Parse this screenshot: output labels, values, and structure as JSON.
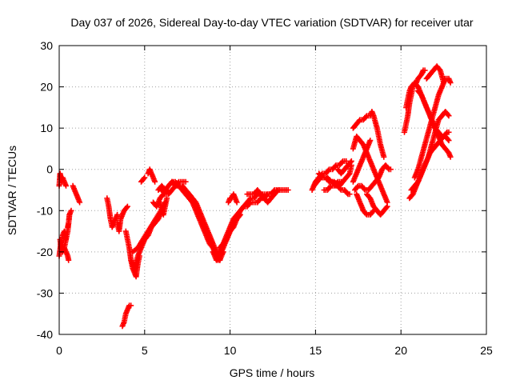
{
  "chart_data": {
    "type": "scatter",
    "title": "Day 037 of 2026, Sidereal Day-to-day VTEC variation (SDTVAR) for receiver utar",
    "xlabel": "GPS time / hours",
    "ylabel": "SDTVAR / TECUs",
    "xlim": [
      0,
      25
    ],
    "ylim": [
      -40,
      30
    ],
    "xticks": [
      "0",
      "5",
      "10",
      "15",
      "20",
      "25"
    ],
    "yticks": [
      "-40",
      "-30",
      "-20",
      "-10",
      "0",
      "10",
      "20",
      "30"
    ],
    "grid": true,
    "legend": "none",
    "marker": "plus",
    "color": "#ff0000",
    "segments": [
      {
        "x": [
          0.0,
          0.1,
          0.2,
          0.3,
          0.35,
          0.4
        ],
        "y": [
          -21,
          -18,
          -16,
          -15,
          -16,
          -17
        ]
      },
      {
        "x": [
          0.05,
          0.1,
          0.2,
          0.3,
          0.4,
          0.5,
          0.55
        ],
        "y": [
          -17,
          -19,
          -20,
          -19,
          -20,
          -21,
          -22
        ]
      },
      {
        "x": [
          0.0,
          0.05,
          0.1,
          0.15,
          0.2,
          0.3,
          0.4
        ],
        "y": [
          -4,
          -1,
          -2,
          -3,
          -2,
          -3,
          -4
        ]
      },
      {
        "x": [
          0.3,
          0.4,
          0.5,
          0.55,
          0.6
        ],
        "y": [
          -19,
          -17,
          -15,
          -13,
          -11
        ]
      },
      {
        "x": [
          0.5,
          0.55,
          0.6,
          0.7
        ],
        "y": [
          -14,
          -13,
          -11,
          -10
        ]
      },
      {
        "x": [
          0.8,
          0.9,
          1.0,
          1.1,
          1.2
        ],
        "y": [
          -4,
          -5,
          -6,
          -7,
          -8
        ]
      },
      {
        "x": [
          2.8,
          2.9,
          3.0,
          3.1,
          3.2,
          3.3,
          3.4
        ],
        "y": [
          -7,
          -9,
          -12,
          -14,
          -13,
          -12,
          -11
        ]
      },
      {
        "x": [
          3.4,
          3.5,
          3.6,
          3.7,
          3.8,
          4.0
        ],
        "y": [
          -13,
          -15,
          -12,
          -11,
          -10,
          -9
        ]
      },
      {
        "x": [
          3.7,
          3.8,
          3.9,
          4.0,
          4.1,
          4.2
        ],
        "y": [
          -38,
          -37,
          -35,
          -34,
          -33,
          -33
        ]
      },
      {
        "x": [
          3.9,
          4.0,
          4.1,
          4.2,
          4.3,
          4.4,
          4.5,
          4.6,
          4.7
        ],
        "y": [
          -15,
          -17,
          -19,
          -22,
          -24,
          -25,
          -26,
          -23,
          -21
        ]
      },
      {
        "x": [
          4.2,
          4.4,
          4.6,
          4.8,
          5.0,
          5.2,
          5.4,
          5.6,
          5.8,
          6.0,
          6.2
        ],
        "y": [
          -22,
          -24,
          -21,
          -19,
          -17,
          -16,
          -14,
          -13,
          -12,
          -10,
          -8
        ]
      },
      {
        "x": [
          4.3,
          4.6,
          4.9,
          5.2,
          5.5,
          5.8,
          6.1
        ],
        "y": [
          -20,
          -19,
          -17,
          -15,
          -13,
          -11,
          -9
        ]
      },
      {
        "x": [
          4.8,
          5.0
        ],
        "y": [
          -3,
          -2
        ]
      },
      {
        "x": [
          5.2,
          5.3,
          5.4,
          5.5,
          5.6
        ],
        "y": [
          -1,
          0,
          -1,
          -2,
          -3
        ]
      },
      {
        "x": [
          5.5,
          5.7,
          5.9,
          6.1,
          6.3
        ],
        "y": [
          -8,
          -9,
          -7,
          -6,
          -5
        ]
      },
      {
        "x": [
          5.8,
          6.0,
          6.2,
          6.4,
          6.6,
          6.8,
          7.0,
          7.2,
          7.4
        ],
        "y": [
          -5,
          -4,
          -5,
          -4,
          -3,
          -4,
          -3,
          -3,
          -3
        ]
      },
      {
        "x": [
          5.9,
          6.0,
          6.1,
          6.2,
          6.3
        ],
        "y": [
          -8,
          -10,
          -11,
          -9,
          -7
        ]
      },
      {
        "x": [
          6.0,
          6.2,
          6.4,
          6.6,
          6.8,
          7.0,
          7.2,
          7.4,
          7.6,
          7.8,
          8.0,
          8.2,
          8.4,
          8.6,
          8.8,
          9.0,
          9.2,
          9.3
        ],
        "y": [
          -5,
          -6,
          -6,
          -5,
          -4,
          -4,
          -4,
          -5,
          -6,
          -7,
          -9,
          -11,
          -13,
          -15,
          -17,
          -19,
          -21,
          -22
        ]
      },
      {
        "x": [
          6.6,
          6.8,
          7.0,
          7.2,
          7.4,
          7.6,
          7.8,
          8.0,
          8.2,
          8.4,
          8.6,
          8.8,
          9.0,
          9.2,
          9.4
        ],
        "y": [
          -3,
          -3,
          -4,
          -4,
          -5,
          -6,
          -7,
          -8,
          -10,
          -12,
          -14,
          -16,
          -18,
          -20,
          -22
        ]
      },
      {
        "x": [
          7.0,
          7.2,
          7.4,
          7.6,
          7.8,
          8.0,
          8.2,
          8.4,
          8.6,
          8.8,
          9.0,
          9.2,
          9.4,
          9.6
        ],
        "y": [
          -4,
          -5,
          -6,
          -7,
          -8,
          -10,
          -12,
          -14,
          -16,
          -18,
          -19,
          -21,
          -22,
          -20
        ]
      },
      {
        "x": [
          9.0,
          9.2,
          9.4,
          9.6,
          9.8,
          10.0,
          10.2,
          10.4,
          10.6
        ],
        "y": [
          -20,
          -22,
          -21,
          -19,
          -17,
          -15,
          -14,
          -12,
          -11
        ]
      },
      {
        "x": [
          9.2,
          9.4,
          9.6,
          9.8,
          10.0,
          10.2,
          10.4,
          10.6,
          10.8,
          11.0,
          11.2,
          11.4,
          11.6,
          11.8,
          12.0,
          12.2,
          12.4,
          12.6,
          12.8,
          13.0
        ],
        "y": [
          -21,
          -20,
          -18,
          -16,
          -14,
          -12,
          -11,
          -10,
          -9,
          -9,
          -8,
          -8,
          -8,
          -7,
          -7,
          -6,
          -6,
          -6,
          -5,
          -5
        ]
      },
      {
        "x": [
          9.4,
          9.6,
          9.8,
          10.0,
          10.2,
          10.4,
          10.6,
          10.8,
          11.0,
          11.2,
          11.4,
          11.6,
          11.8,
          12.0,
          12.2,
          12.4,
          12.6,
          12.8,
          13.0,
          13.2,
          13.4
        ],
        "y": [
          -19,
          -18,
          -17,
          -15,
          -13,
          -12,
          -10,
          -9,
          -8,
          -7,
          -7,
          -6,
          -6,
          -6,
          -6,
          -6,
          -5,
          -5,
          -5,
          -5,
          -5
        ]
      },
      {
        "x": [
          9.9,
          10.0,
          10.1,
          10.2,
          10.3,
          10.4
        ],
        "y": [
          -8,
          -7,
          -7,
          -6,
          -7,
          -8
        ]
      },
      {
        "x": [
          11.0,
          11.2,
          11.4,
          11.6,
          11.8,
          12.0,
          12.2,
          12.4,
          12.6,
          12.8
        ],
        "y": [
          -6,
          -6,
          -6,
          -5,
          -6,
          -7,
          -8,
          -7,
          -6,
          -5
        ]
      },
      {
        "x": [
          14.8,
          15.0,
          15.2,
          15.4,
          15.6,
          15.8,
          16.0,
          16.2,
          16.4,
          16.6,
          16.8
        ],
        "y": [
          -5,
          -3,
          -2,
          -1,
          -1,
          0,
          0,
          1,
          1,
          2,
          2
        ]
      },
      {
        "x": [
          14.9,
          15.1,
          15.3,
          15.5,
          15.7,
          15.9,
          16.1,
          16.3,
          16.5,
          16.7,
          16.9,
          17.0
        ],
        "y": [
          -4,
          -3,
          -2,
          -2,
          -2,
          -3,
          -3,
          -4,
          -5,
          -5,
          -6,
          -6
        ]
      },
      {
        "x": [
          15.2,
          15.4,
          15.6,
          15.8,
          16.0,
          16.2,
          16.4,
          16.6,
          16.8,
          17.0,
          17.1
        ],
        "y": [
          -1,
          -2,
          -2,
          -3,
          -3,
          -4,
          -4,
          -3,
          -2,
          -1,
          1
        ]
      },
      {
        "x": [
          15.5,
          15.7,
          15.9,
          16.1,
          16.3,
          16.5
        ],
        "y": [
          -5,
          -5,
          -4,
          -4,
          -3,
          -3
        ]
      },
      {
        "x": [
          16.3,
          16.5,
          16.7,
          16.9,
          17.1
        ],
        "y": [
          0,
          -1,
          0,
          1,
          2
        ]
      },
      {
        "x": [
          17.2,
          17.4,
          17.6,
          17.8,
          18.0,
          18.2,
          18.3,
          18.4,
          18.6,
          18.8,
          19.0
        ],
        "y": [
          10,
          11,
          12,
          12,
          13,
          13,
          14,
          13,
          10,
          6,
          3
        ]
      },
      {
        "x": [
          17.2,
          17.4,
          17.6,
          17.8,
          18.0,
          18.2,
          18.4,
          18.6,
          18.8,
          19.0,
          19.2
        ],
        "y": [
          5,
          8,
          7,
          6,
          4,
          2,
          0,
          -2,
          -4,
          -6,
          -8
        ]
      },
      {
        "x": [
          17.2,
          17.4,
          17.6,
          17.8,
          18.0,
          18.2
        ],
        "y": [
          -3,
          -1,
          1,
          3,
          5,
          7
        ]
      },
      {
        "x": [
          17.3,
          17.5,
          17.7,
          17.9,
          18.1,
          18.3,
          18.5,
          18.7,
          18.9,
          19.1,
          19.3,
          19.4
        ],
        "y": [
          -5,
          -4,
          -4,
          -5,
          -5,
          -4,
          -3,
          -2,
          0,
          1,
          0,
          0
        ]
      },
      {
        "x": [
          17.4,
          17.5,
          17.6,
          17.8,
          18.0,
          18.2,
          18.4
        ],
        "y": [
          -6,
          -7,
          -8,
          -10,
          -11,
          -11,
          -10
        ]
      },
      {
        "x": [
          18.0,
          18.2,
          18.4,
          18.6,
          18.8,
          19.0,
          19.2
        ],
        "y": [
          -6,
          -7,
          -9,
          -10,
          -11,
          -10,
          -9
        ]
      },
      {
        "x": [
          20.2,
          20.3,
          20.4,
          20.5,
          20.6,
          20.7,
          20.8,
          20.9,
          21.0,
          21.2,
          21.3,
          21.4
        ],
        "y": [
          9,
          11,
          13,
          16,
          18,
          20,
          21,
          21,
          22,
          23,
          24,
          24
        ]
      },
      {
        "x": [
          20.3,
          20.4,
          20.5,
          20.6,
          20.8,
          21.0,
          21.2,
          21.4,
          21.6,
          21.8,
          22.0,
          22.2,
          22.4,
          22.6,
          22.8,
          22.9
        ],
        "y": [
          15,
          17,
          19,
          20,
          21,
          20,
          18,
          16,
          14,
          12,
          10,
          8,
          6,
          5,
          4,
          3
        ]
      },
      {
        "x": [
          20.5,
          20.7,
          20.9,
          21.1,
          21.3,
          21.5,
          21.7,
          21.9,
          22.1,
          22.3,
          22.5,
          22.7,
          22.8
        ],
        "y": [
          -7,
          -6,
          -4,
          -2,
          0,
          2,
          4,
          5,
          6,
          7,
          8,
          9,
          9
        ]
      },
      {
        "x": [
          20.6,
          20.8,
          21.0,
          21.2,
          21.4,
          21.6,
          21.8,
          22.0,
          22.2,
          22.4,
          22.6,
          22.8
        ],
        "y": [
          -5,
          -4,
          -3,
          -1,
          1,
          3,
          6,
          9,
          12,
          13,
          14,
          13
        ]
      },
      {
        "x": [
          20.8,
          21.0,
          21.2,
          21.4,
          21.6,
          21.8,
          22.0,
          22.2,
          22.4,
          22.6,
          22.8,
          22.9
        ],
        "y": [
          -2,
          0,
          3,
          6,
          9,
          12,
          15,
          18,
          20,
          22,
          22,
          21
        ]
      },
      {
        "x": [
          21.0,
          21.2,
          21.4,
          21.6,
          21.8,
          22.0,
          22.2,
          22.4,
          22.6,
          22.8
        ],
        "y": [
          19,
          18,
          16,
          14,
          12,
          10,
          9,
          8,
          8,
          7
        ]
      },
      {
        "x": [
          21.5,
          21.7,
          21.9,
          22.1,
          22.3,
          22.5
        ],
        "y": [
          22,
          23,
          24,
          25,
          24,
          21
        ]
      }
    ]
  }
}
